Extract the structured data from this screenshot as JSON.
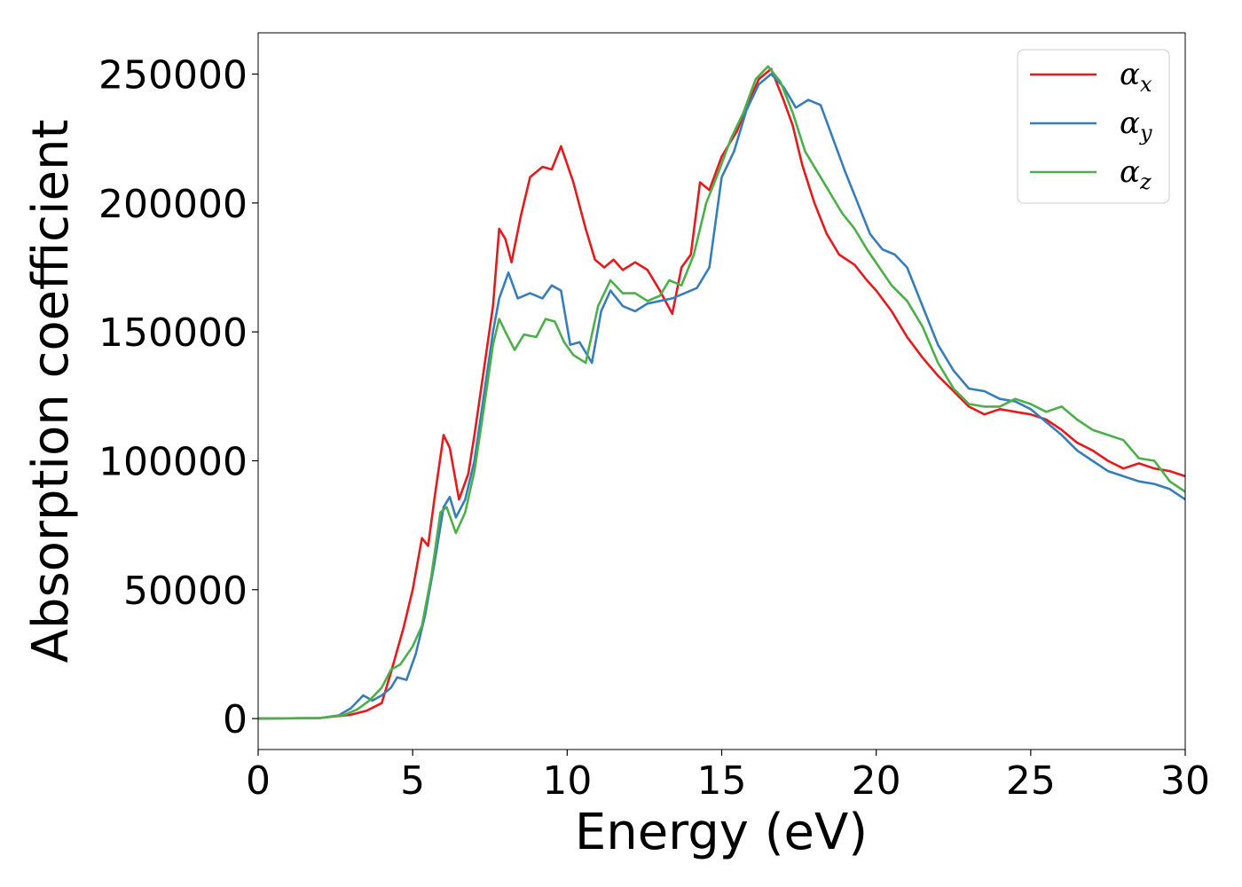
{
  "chart_data": {
    "type": "line",
    "title": "",
    "xlabel": "Energy (eV)",
    "ylabel": "Absorption coefficient",
    "xlim": [
      0,
      30
    ],
    "ylim": [
      -12000,
      266000
    ],
    "xticks": [
      0,
      5,
      10,
      15,
      20,
      25,
      30
    ],
    "xtick_labels": [
      "0",
      "5",
      "10",
      "15",
      "20",
      "25",
      "30"
    ],
    "yticks": [
      0,
      50000,
      100000,
      150000,
      200000,
      250000
    ],
    "ytick_labels": [
      "0",
      "50000",
      "100000",
      "150000",
      "200000",
      "250000"
    ],
    "grid": false,
    "legend_position": "top-right",
    "series": [
      {
        "name": "αx",
        "legend_symbol": "α",
        "legend_sub": "x",
        "color": "#e41a1c",
        "points": [
          [
            0,
            0
          ],
          [
            2,
            200
          ],
          [
            3,
            1500
          ],
          [
            3.5,
            3000
          ],
          [
            4,
            6000
          ],
          [
            4.3,
            18000
          ],
          [
            4.7,
            35000
          ],
          [
            5,
            50000
          ],
          [
            5.3,
            70000
          ],
          [
            5.5,
            67000
          ],
          [
            5.7,
            85000
          ],
          [
            6,
            110000
          ],
          [
            6.2,
            105000
          ],
          [
            6.5,
            85000
          ],
          [
            6.8,
            95000
          ],
          [
            7,
            110000
          ],
          [
            7.3,
            135000
          ],
          [
            7.6,
            160000
          ],
          [
            7.8,
            190000
          ],
          [
            8,
            186000
          ],
          [
            8.2,
            177000
          ],
          [
            8.5,
            195000
          ],
          [
            8.8,
            210000
          ],
          [
            9.2,
            214000
          ],
          [
            9.5,
            213000
          ],
          [
            9.8,
            222000
          ],
          [
            10.2,
            208000
          ],
          [
            10.6,
            190000
          ],
          [
            10.9,
            178000
          ],
          [
            11.2,
            175000
          ],
          [
            11.5,
            178000
          ],
          [
            11.8,
            174000
          ],
          [
            12.2,
            177000
          ],
          [
            12.6,
            174000
          ],
          [
            13,
            166000
          ],
          [
            13.4,
            157000
          ],
          [
            13.7,
            175000
          ],
          [
            14,
            180000
          ],
          [
            14.3,
            208000
          ],
          [
            14.6,
            205000
          ],
          [
            15,
            218000
          ],
          [
            15.5,
            228000
          ],
          [
            15.8,
            237000
          ],
          [
            16.2,
            248000
          ],
          [
            16.6,
            252000
          ],
          [
            17,
            240000
          ],
          [
            17.3,
            230000
          ],
          [
            17.6,
            215000
          ],
          [
            18,
            200000
          ],
          [
            18.4,
            188000
          ],
          [
            18.8,
            180000
          ],
          [
            19.3,
            176000
          ],
          [
            19.7,
            170000
          ],
          [
            20,
            166000
          ],
          [
            20.5,
            158000
          ],
          [
            21,
            148000
          ],
          [
            21.5,
            140000
          ],
          [
            22,
            133000
          ],
          [
            22.5,
            127000
          ],
          [
            23,
            121000
          ],
          [
            23.5,
            118000
          ],
          [
            24,
            120000
          ],
          [
            24.5,
            119000
          ],
          [
            25,
            118000
          ],
          [
            25.5,
            116000
          ],
          [
            26,
            112000
          ],
          [
            26.5,
            107000
          ],
          [
            27,
            104000
          ],
          [
            27.5,
            100000
          ],
          [
            28,
            97000
          ],
          [
            28.5,
            99000
          ],
          [
            29,
            97000
          ],
          [
            29.5,
            96000
          ],
          [
            30,
            94000
          ]
        ]
      },
      {
        "name": "αy",
        "legend_symbol": "α",
        "legend_sub": "y",
        "color": "#377eb8",
        "points": [
          [
            0,
            0
          ],
          [
            2,
            200
          ],
          [
            2.6,
            1200
          ],
          [
            3,
            4000
          ],
          [
            3.4,
            9000
          ],
          [
            3.7,
            7000
          ],
          [
            4,
            9000
          ],
          [
            4.3,
            12000
          ],
          [
            4.5,
            16000
          ],
          [
            4.8,
            15000
          ],
          [
            5.1,
            25000
          ],
          [
            5.4,
            40000
          ],
          [
            5.7,
            60000
          ],
          [
            6,
            82000
          ],
          [
            6.2,
            86000
          ],
          [
            6.4,
            78000
          ],
          [
            6.7,
            85000
          ],
          [
            7,
            100000
          ],
          [
            7.3,
            125000
          ],
          [
            7.6,
            150000
          ],
          [
            7.8,
            163000
          ],
          [
            8.1,
            173000
          ],
          [
            8.4,
            163000
          ],
          [
            8.8,
            165000
          ],
          [
            9.2,
            163000
          ],
          [
            9.5,
            168000
          ],
          [
            9.8,
            166000
          ],
          [
            10.1,
            145000
          ],
          [
            10.4,
            146000
          ],
          [
            10.8,
            138000
          ],
          [
            11.1,
            158000
          ],
          [
            11.4,
            166000
          ],
          [
            11.8,
            160000
          ],
          [
            12.2,
            158000
          ],
          [
            12.6,
            161000
          ],
          [
            13,
            162000
          ],
          [
            13.4,
            163000
          ],
          [
            13.8,
            165000
          ],
          [
            14.2,
            167000
          ],
          [
            14.6,
            175000
          ],
          [
            15,
            210000
          ],
          [
            15.4,
            220000
          ],
          [
            15.8,
            236000
          ],
          [
            16.2,
            246000
          ],
          [
            16.6,
            250000
          ],
          [
            17,
            245000
          ],
          [
            17.4,
            237000
          ],
          [
            17.8,
            240000
          ],
          [
            18.2,
            238000
          ],
          [
            18.6,
            225000
          ],
          [
            19,
            212000
          ],
          [
            19.4,
            200000
          ],
          [
            19.8,
            188000
          ],
          [
            20.2,
            182000
          ],
          [
            20.6,
            180000
          ],
          [
            21,
            175000
          ],
          [
            21.5,
            160000
          ],
          [
            22,
            145000
          ],
          [
            22.5,
            135000
          ],
          [
            23,
            128000
          ],
          [
            23.5,
            127000
          ],
          [
            24,
            124000
          ],
          [
            24.5,
            123000
          ],
          [
            25,
            120000
          ],
          [
            25.5,
            115000
          ],
          [
            26,
            110000
          ],
          [
            26.5,
            104000
          ],
          [
            27,
            100000
          ],
          [
            27.5,
            96000
          ],
          [
            28,
            94000
          ],
          [
            28.5,
            92000
          ],
          [
            29,
            91000
          ],
          [
            29.5,
            89000
          ],
          [
            30,
            85000
          ]
        ]
      },
      {
        "name": "αz",
        "legend_symbol": "α",
        "legend_sub": "z",
        "color": "#4daf4a",
        "points": [
          [
            0,
            0
          ],
          [
            2,
            200
          ],
          [
            2.8,
            1500
          ],
          [
            3.2,
            3500
          ],
          [
            3.6,
            7000
          ],
          [
            4,
            12000
          ],
          [
            4.3,
            19000
          ],
          [
            4.6,
            21000
          ],
          [
            5,
            28000
          ],
          [
            5.3,
            36000
          ],
          [
            5.6,
            55000
          ],
          [
            5.9,
            80000
          ],
          [
            6.1,
            82000
          ],
          [
            6.4,
            72000
          ],
          [
            6.7,
            80000
          ],
          [
            7,
            96000
          ],
          [
            7.3,
            120000
          ],
          [
            7.6,
            145000
          ],
          [
            7.8,
            155000
          ],
          [
            8,
            150000
          ],
          [
            8.3,
            143000
          ],
          [
            8.6,
            149000
          ],
          [
            9,
            148000
          ],
          [
            9.3,
            155000
          ],
          [
            9.6,
            154000
          ],
          [
            9.9,
            146000
          ],
          [
            10.2,
            141000
          ],
          [
            10.6,
            138000
          ],
          [
            11,
            160000
          ],
          [
            11.4,
            170000
          ],
          [
            11.8,
            165000
          ],
          [
            12.2,
            165000
          ],
          [
            12.6,
            162000
          ],
          [
            13,
            164000
          ],
          [
            13.3,
            170000
          ],
          [
            13.7,
            168000
          ],
          [
            14.1,
            180000
          ],
          [
            14.5,
            200000
          ],
          [
            14.9,
            212000
          ],
          [
            15.3,
            225000
          ],
          [
            15.7,
            235000
          ],
          [
            16.1,
            248000
          ],
          [
            16.5,
            253000
          ],
          [
            16.9,
            247000
          ],
          [
            17.3,
            235000
          ],
          [
            17.7,
            220000
          ],
          [
            18.1,
            212000
          ],
          [
            18.5,
            204000
          ],
          [
            18.9,
            196000
          ],
          [
            19.3,
            190000
          ],
          [
            19.7,
            182000
          ],
          [
            20.1,
            175000
          ],
          [
            20.5,
            168000
          ],
          [
            21,
            162000
          ],
          [
            21.5,
            152000
          ],
          [
            22,
            138000
          ],
          [
            22.5,
            128000
          ],
          [
            23,
            122000
          ],
          [
            23.5,
            121000
          ],
          [
            24,
            121000
          ],
          [
            24.5,
            124000
          ],
          [
            25,
            122000
          ],
          [
            25.5,
            119000
          ],
          [
            26,
            121000
          ],
          [
            26.5,
            116000
          ],
          [
            27,
            112000
          ],
          [
            27.5,
            110000
          ],
          [
            28,
            108000
          ],
          [
            28.5,
            101000
          ],
          [
            29,
            100000
          ],
          [
            29.5,
            92000
          ],
          [
            30,
            88000
          ]
        ]
      }
    ]
  }
}
